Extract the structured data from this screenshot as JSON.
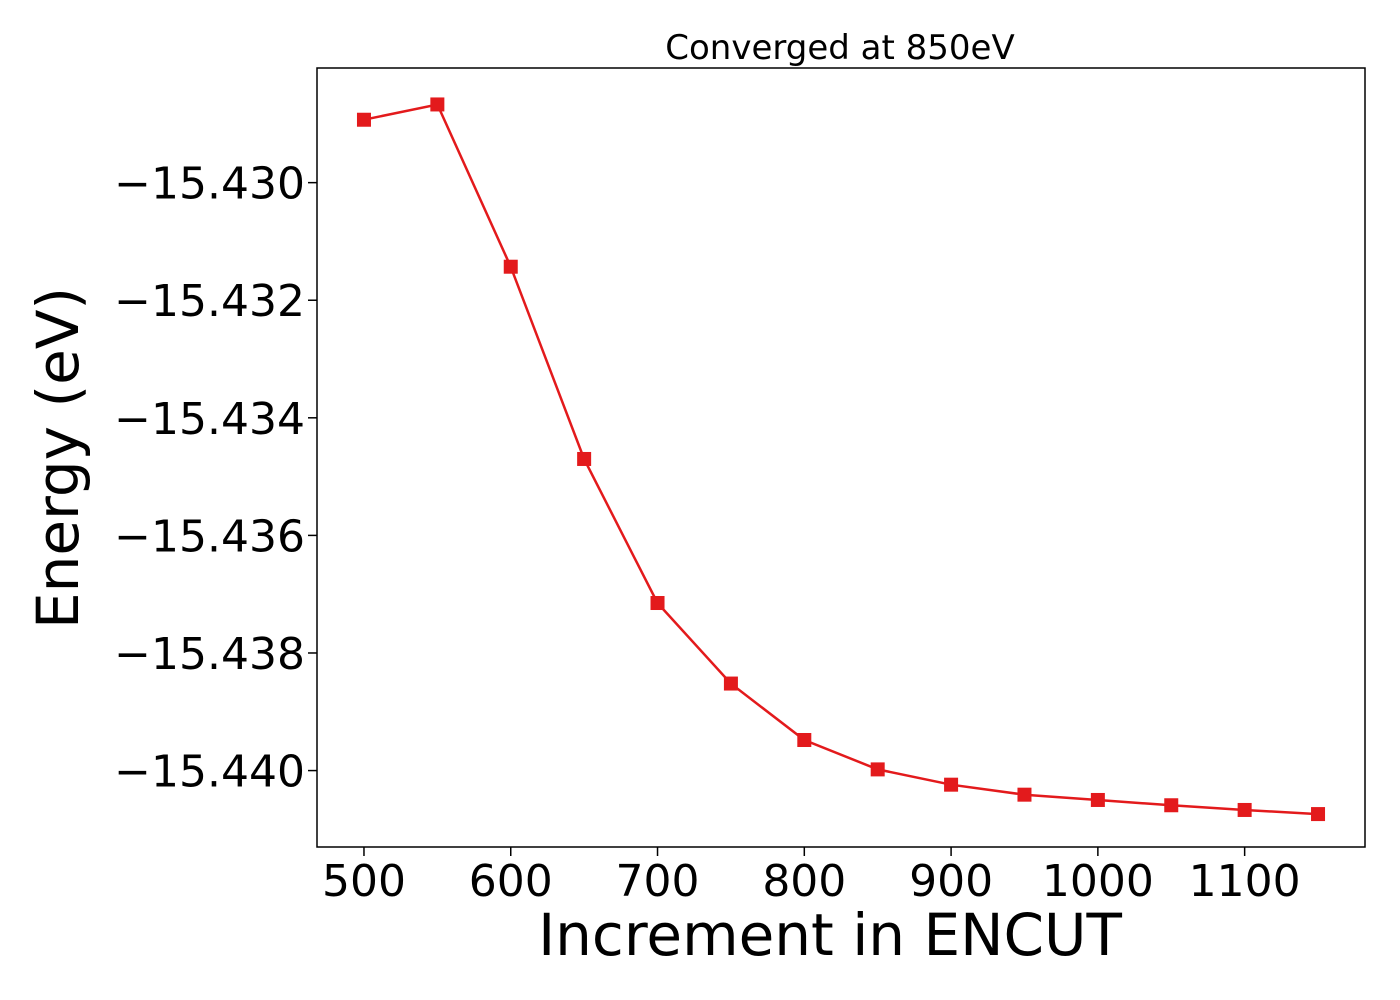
{
  "chart_data": {
    "type": "line",
    "title": "Converged at 850eV",
    "xlabel": "Increment in ENCUT",
    "ylabel": "Energy (eV)",
    "xlim": [
      468,
      1182
    ],
    "ylim": [
      -15.4413,
      -15.42805
    ],
    "xticks": [
      500,
      600,
      700,
      800,
      900,
      1000,
      1100
    ],
    "xtick_labels": [
      "500",
      "600",
      "700",
      "800",
      "900",
      "1000",
      "1100"
    ],
    "yticks": [
      -15.43,
      -15.432,
      -15.434,
      -15.436,
      -15.438,
      -15.44
    ],
    "ytick_labels": [
      "−15.430",
      "−15.432",
      "−15.434",
      "−15.436",
      "−15.438",
      "−15.440"
    ],
    "grid": false,
    "legend": "none",
    "series": [
      {
        "color": "#e31a1c",
        "marker": "square",
        "x": [
          500,
          550,
          600,
          650,
          700,
          750,
          800,
          850,
          900,
          950,
          1000,
          1050,
          1100,
          1150
        ],
        "y": [
          -15.42893,
          -15.42867,
          -15.43143,
          -15.4347,
          -15.43715,
          -15.43852,
          -15.43948,
          -15.43998,
          -15.44024,
          -15.44041,
          -15.4405,
          -15.44059,
          -15.44067,
          -15.44074
        ]
      }
    ]
  }
}
